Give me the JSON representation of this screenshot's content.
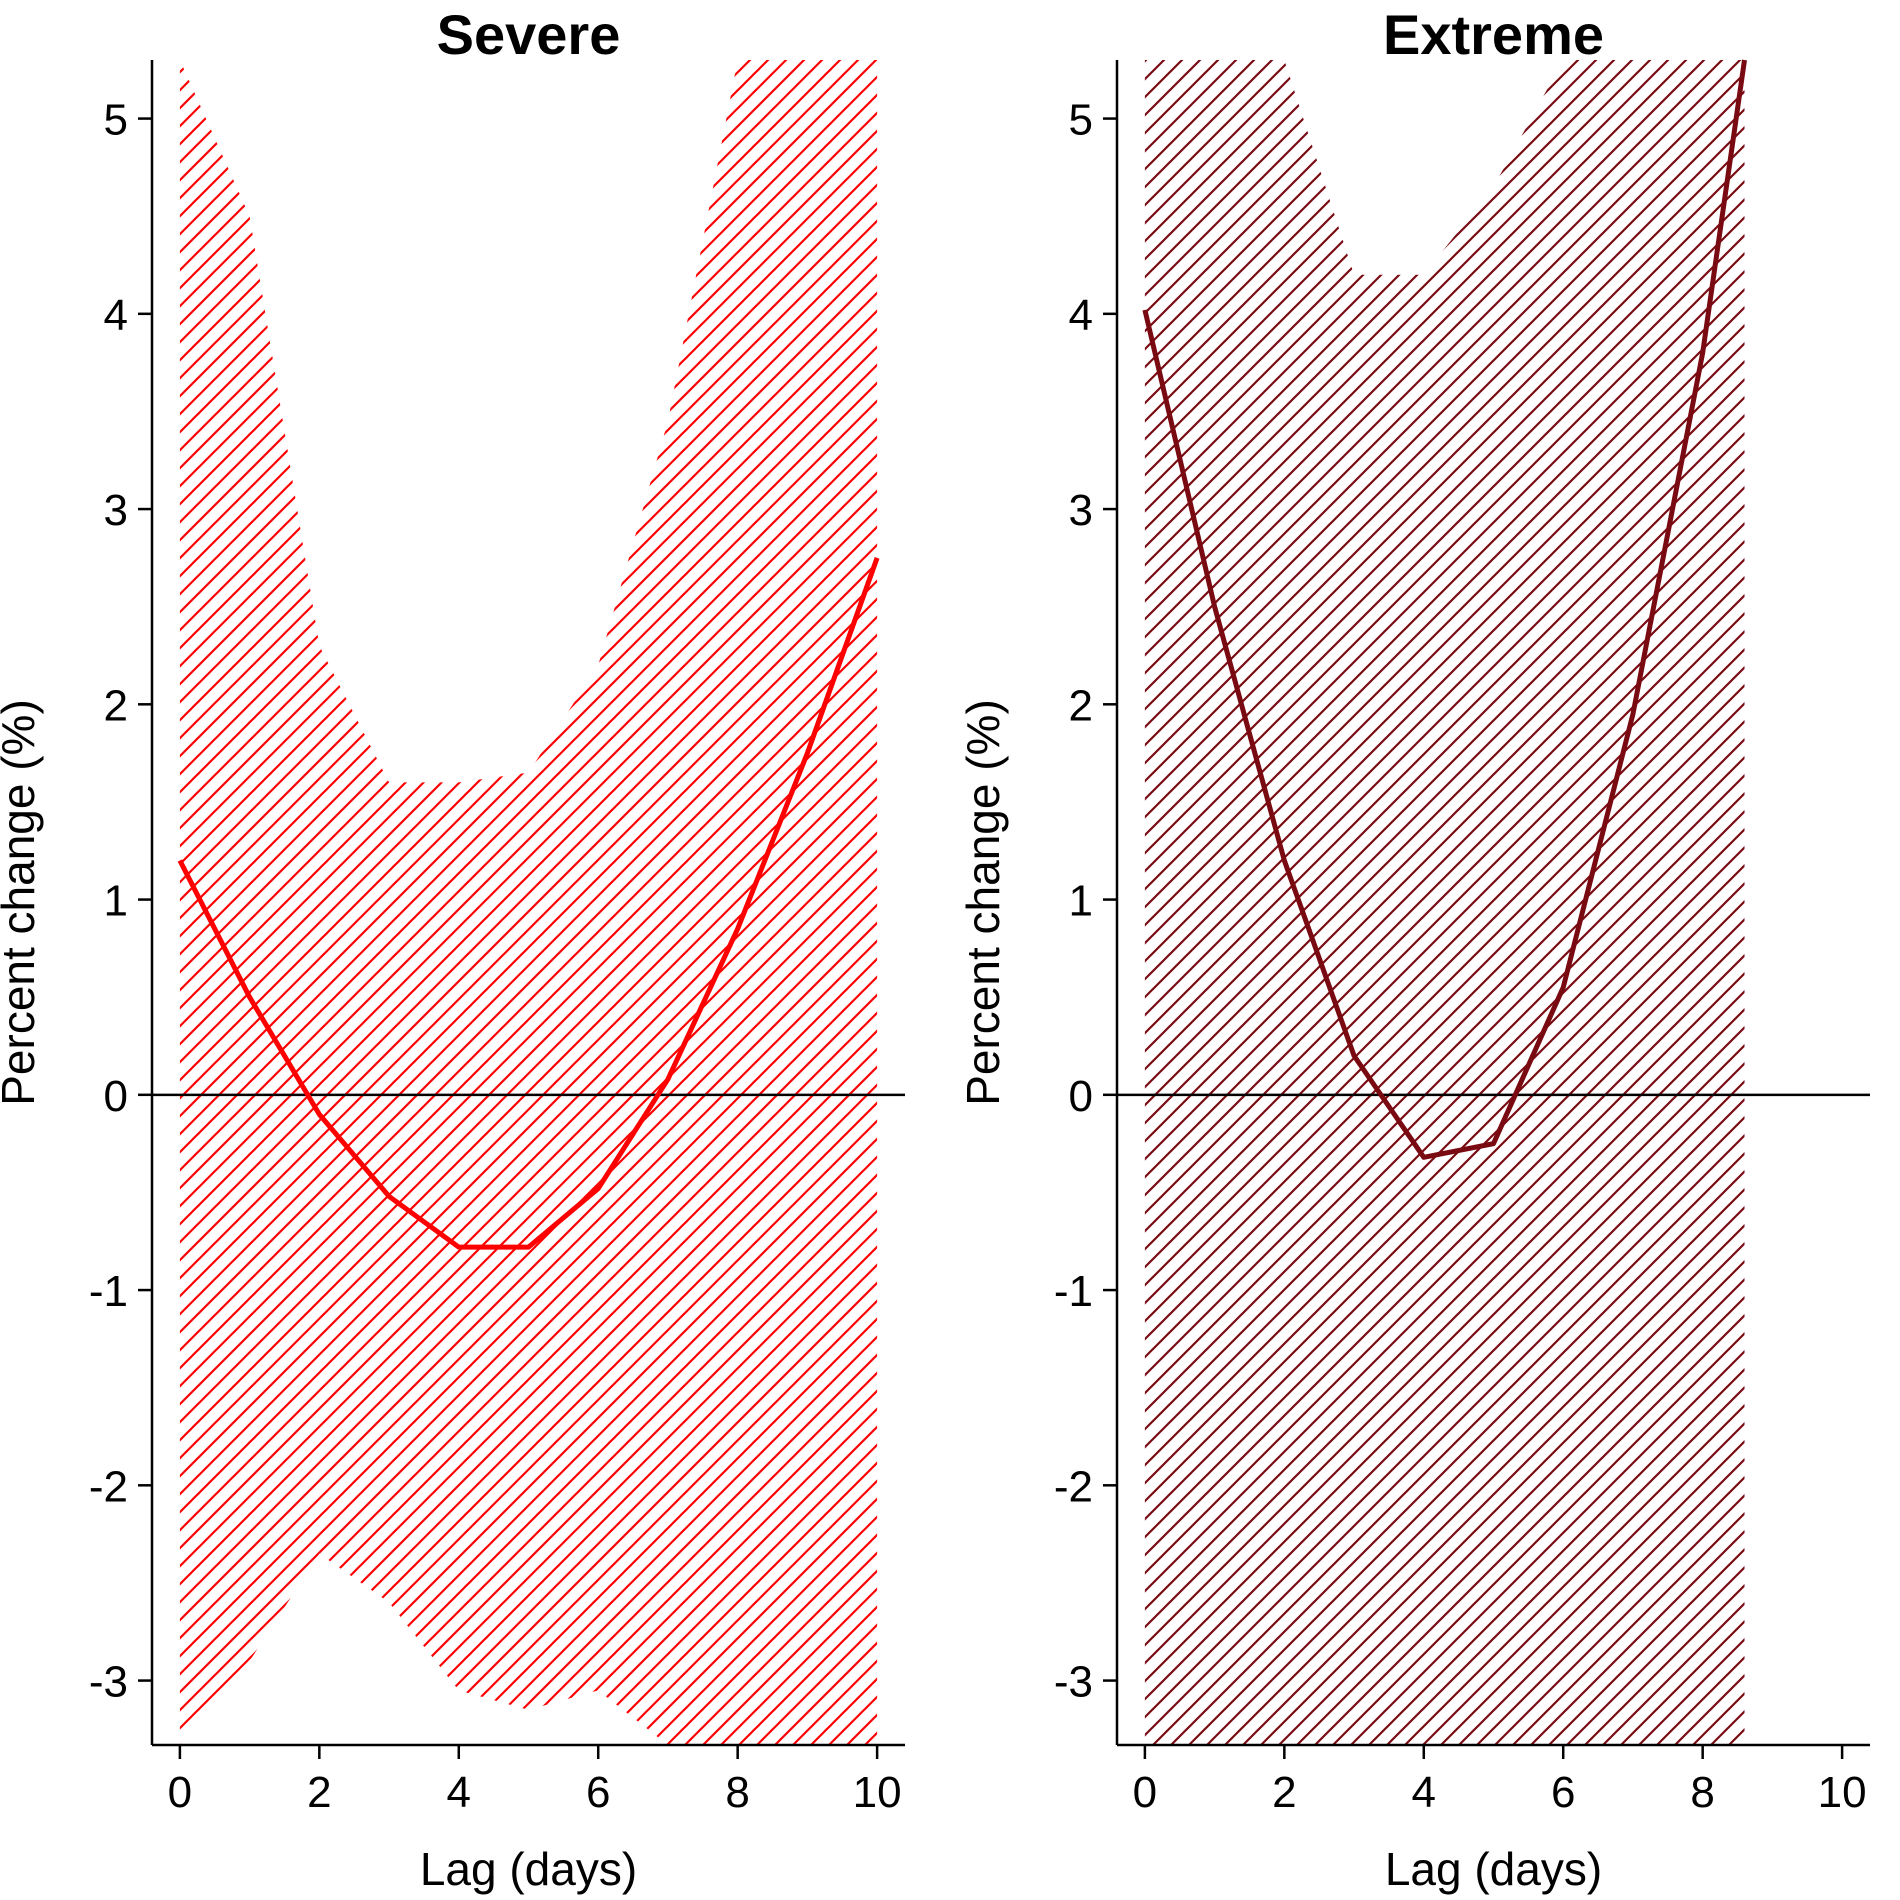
{
  "colors": {
    "severe": "#ff0000",
    "extreme": "#7a0a12",
    "axis": "#000000",
    "background": "#ffffff"
  },
  "chart_data": [
    {
      "type": "line",
      "title": "Severe",
      "xlabel": "Lag (days)",
      "ylabel": "Percent change (%)",
      "xlim": [
        -0.4,
        10.4
      ],
      "ylim": [
        -3.33,
        5.3
      ],
      "xticks": [
        "0",
        "2",
        "4",
        "6",
        "8",
        "10"
      ],
      "yticks": [
        "-3",
        "-2",
        "-1",
        "0",
        "1",
        "2",
        "3",
        "4",
        "5"
      ],
      "reference_line": 0,
      "grid": false,
      "legend": "none",
      "confidence_band": "hatched",
      "x": [
        0,
        1,
        2,
        3,
        4,
        5,
        6,
        7,
        8,
        9,
        10
      ],
      "estimate": [
        1.2,
        0.5,
        -0.1,
        -0.52,
        -0.78,
        -0.78,
        -0.48,
        0.08,
        0.85,
        1.75,
        2.75
      ],
      "lower": [
        -3.33,
        -2.9,
        -2.35,
        -2.6,
        -3.05,
        -3.15,
        -3.05,
        -3.33,
        -3.33,
        -3.33,
        -3.33
      ],
      "upper": [
        5.3,
        4.5,
        2.3,
        1.6,
        1.6,
        1.65,
        2.2,
        3.45,
        5.3,
        5.3,
        5.3
      ]
    },
    {
      "type": "line",
      "title": "Extreme",
      "xlabel": "Lag (days)",
      "ylabel": "Percent change (%)",
      "xlim": [
        -0.4,
        10.4
      ],
      "ylim": [
        -3.33,
        5.3
      ],
      "xticks": [
        "0",
        "2",
        "4",
        "6",
        "8",
        "10"
      ],
      "yticks": [
        "-3",
        "-2",
        "-1",
        "0",
        "1",
        "2",
        "3",
        "4",
        "5"
      ],
      "reference_line": 0,
      "grid": false,
      "legend": "none",
      "confidence_band": "hatched",
      "x": [
        0,
        1,
        2,
        3,
        4,
        5,
        6,
        7,
        8,
        8.6
      ],
      "estimate": [
        4.02,
        2.5,
        1.2,
        0.2,
        -0.32,
        -0.25,
        0.55,
        1.95,
        3.8,
        5.3
      ],
      "lower": [
        -3.33,
        -3.33,
        -3.33,
        -3.33,
        -3.33,
        -3.33,
        -3.33,
        -3.33,
        -3.33,
        -3.33
      ],
      "upper": [
        5.3,
        5.3,
        5.3,
        4.2,
        4.2,
        4.65,
        5.3,
        5.3,
        5.3,
        5.3
      ]
    }
  ]
}
